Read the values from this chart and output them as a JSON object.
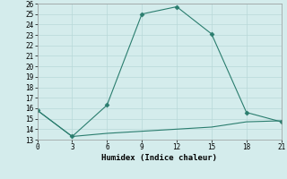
{
  "xlabel": "Humidex (Indice chaleur)",
  "line1_x": [
    0,
    3,
    6,
    9,
    12,
    15,
    18,
    21
  ],
  "line1_y": [
    15.8,
    13.3,
    16.3,
    25.0,
    25.7,
    23.1,
    15.6,
    14.7
  ],
  "line2_x": [
    0,
    3,
    6,
    9,
    12,
    15,
    18,
    21
  ],
  "line2_y": [
    15.8,
    13.3,
    13.6,
    13.8,
    14.0,
    14.2,
    14.7,
    14.8
  ],
  "line_color": "#2a7d6e",
  "bg_color": "#d4ecec",
  "grid_color": "#b8d8d8",
  "xlim": [
    0,
    21
  ],
  "ylim": [
    13,
    26
  ],
  "xticks": [
    0,
    3,
    6,
    9,
    12,
    15,
    18,
    21
  ],
  "yticks": [
    13,
    14,
    15,
    16,
    17,
    18,
    19,
    20,
    21,
    22,
    23,
    24,
    25,
    26
  ]
}
